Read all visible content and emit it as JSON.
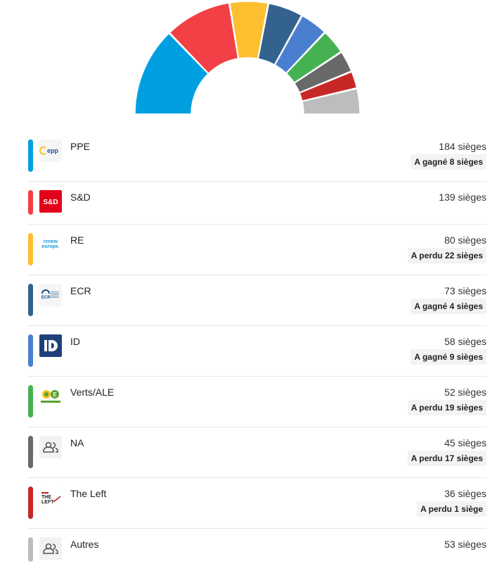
{
  "chart_data": {
    "type": "hemicycle",
    "unit": "sièges",
    "series": [
      {
        "name": "PPE",
        "seats": 184,
        "color": "#009fe0",
        "change": "A gagné 8 sièges",
        "logo": "epp-logo"
      },
      {
        "name": "S&D",
        "seats": 139,
        "color": "#f24046",
        "change": "",
        "logo": "sd-logo"
      },
      {
        "name": "RE",
        "seats": 80,
        "color": "#fcbf2f",
        "change": "A perdu 22 sièges",
        "logo": "renew-europe-logo"
      },
      {
        "name": "ECR",
        "seats": 73,
        "color": "#34628e",
        "change": "A gagné 4 sièges",
        "logo": "ecr-logo"
      },
      {
        "name": "ID",
        "seats": 58,
        "color": "#4a7fd0",
        "change": "A gagné 9 sièges",
        "logo": "id-logo"
      },
      {
        "name": "Verts/ALE",
        "seats": 52,
        "color": "#46b153",
        "change": "A perdu 19 sièges",
        "logo": "greens-efa-logo"
      },
      {
        "name": "NA",
        "seats": 45,
        "color": "#696969",
        "change": "A perdu 17 sièges",
        "logo": "people-icon"
      },
      {
        "name": "The Left",
        "seats": 36,
        "color": "#c62828",
        "change": "A perdu 1 siège",
        "logo": "the-left-logo"
      },
      {
        "name": "Autres",
        "seats": 53,
        "color": "#bdbdbd",
        "change": "",
        "logo": "people-icon"
      }
    ],
    "logo_text": {
      "epp": "epp",
      "sd": "S&D",
      "renew1": "renew",
      "renew2": "europe.",
      "ecr": "ECR",
      "left1": "THE",
      "left2": "LEFT"
    }
  }
}
